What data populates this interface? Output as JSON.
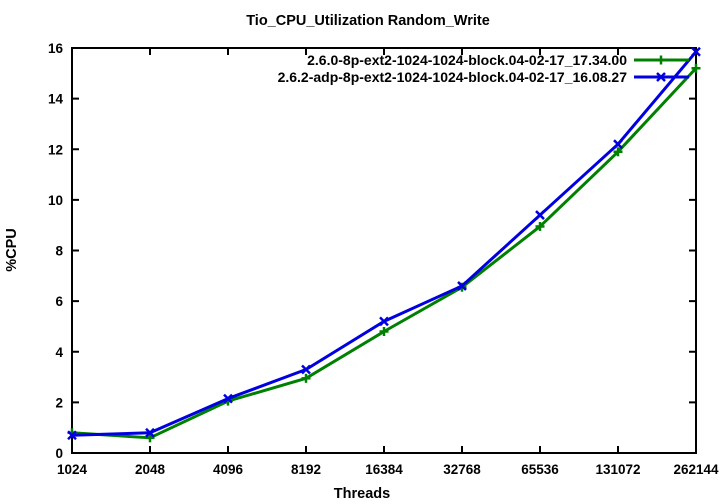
{
  "window": {
    "background_color": "#ffffff",
    "foreground_color": "#000000"
  },
  "chart_data": {
    "type": "line",
    "title": "Tio_CPU_Utilization Random_Write",
    "xlabel": "Threads",
    "ylabel": "%CPU",
    "x_scale": "log2",
    "x": [
      1024,
      2048,
      4096,
      8192,
      16384,
      32768,
      65536,
      131072,
      262144
    ],
    "xtick_labels": [
      "1024",
      "2048",
      "4096",
      "8192",
      "16384",
      "32768",
      "65536",
      "131072",
      "262144"
    ],
    "yticks": [
      0,
      2,
      4,
      6,
      8,
      10,
      12,
      14,
      16
    ],
    "ylim": [
      0,
      16
    ],
    "grid": false,
    "border": true,
    "tick_style": "inward-mirrored",
    "legend_position": "top-right-inside",
    "series": [
      {
        "name": "2.6.0-8p-ext2-1024-1024-block.04-02-17_17.34.00",
        "color": "#008000",
        "marker": "plus",
        "values": [
          0.8,
          0.6,
          2.05,
          2.95,
          4.8,
          6.55,
          8.95,
          11.9,
          15.2
        ]
      },
      {
        "name": "2.6.2-adp-8p-ext2-1024-1024-block.04-02-17_16.08.27",
        "color": "#0000e0",
        "marker": "cross",
        "values": [
          0.7,
          0.8,
          2.15,
          3.3,
          5.2,
          6.6,
          9.4,
          12.2,
          15.85
        ]
      }
    ]
  }
}
